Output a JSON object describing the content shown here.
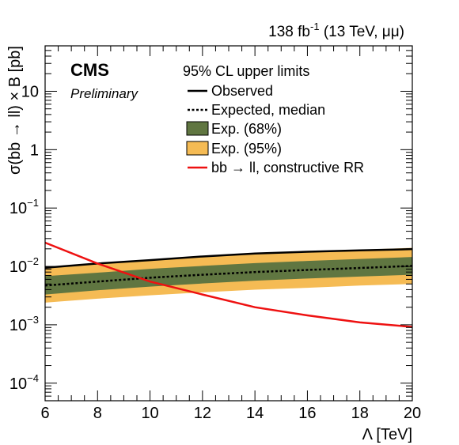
{
  "lumi_label": {
    "lumi": "138 fb",
    "exponent": "-1",
    "conditions": " (13 TeV, μμ)"
  },
  "experiment": "CMS",
  "status": "Preliminary",
  "legend": {
    "header": "95% CL upper limits",
    "observed": "Observed",
    "expected": "Expected, median",
    "band68": "Exp. (68%)",
    "band95": "Exp. (95%)",
    "theory": "bb → ll, constructive RR"
  },
  "colors": {
    "band68": "#607641",
    "band95": "#F5BB54",
    "observed": "#000000",
    "expected": "#000000",
    "theory": "#EE1111"
  },
  "chart_data": {
    "type": "line",
    "x_label": "Λ [TeV]",
    "y_label": "σ(bb → ll) × B [pb]",
    "x_range": [
      6,
      20
    ],
    "y_range": [
      5e-05,
      60
    ],
    "y_scale": "log",
    "x_ticks": [
      6,
      8,
      10,
      12,
      14,
      16,
      18,
      20
    ],
    "y_ticks": [
      {
        "value": 0.0001,
        "base": "10",
        "exp": "−4"
      },
      {
        "value": 0.001,
        "base": "10",
        "exp": "−3"
      },
      {
        "value": 0.01,
        "base": "10",
        "exp": "−2"
      },
      {
        "value": 0.1,
        "base": "10",
        "exp": "−1"
      },
      {
        "value": 1,
        "base": "1",
        "exp": ""
      },
      {
        "value": 10,
        "base": "10",
        "exp": ""
      }
    ],
    "x": [
      6,
      8,
      10,
      12,
      14,
      16,
      18,
      20
    ],
    "series": [
      {
        "name": "Observed",
        "values": [
          0.0095,
          0.0112,
          0.0128,
          0.0148,
          0.0166,
          0.0178,
          0.0188,
          0.0198
        ]
      },
      {
        "name": "Expected, median",
        "values": [
          0.0047,
          0.0055,
          0.0064,
          0.0072,
          0.008,
          0.0087,
          0.0094,
          0.0102
        ]
      },
      {
        "name": "Exp. (68%) low",
        "values": [
          0.0033,
          0.0039,
          0.0045,
          0.0051,
          0.0057,
          0.0062,
          0.0067,
          0.0072
        ]
      },
      {
        "name": "Exp. (68%) high",
        "values": [
          0.0068,
          0.0078,
          0.0091,
          0.0102,
          0.0114,
          0.0124,
          0.0134,
          0.0145
        ]
      },
      {
        "name": "Exp. (95%) low",
        "values": [
          0.0024,
          0.0028,
          0.0032,
          0.0036,
          0.004,
          0.0043,
          0.0047,
          0.005
        ]
      },
      {
        "name": "Exp. (95%) high",
        "values": [
          0.0098,
          0.0113,
          0.013,
          0.0148,
          0.0164,
          0.0178,
          0.0193,
          0.0208
        ]
      },
      {
        "name": "bb → ll, constructive RR",
        "values": [
          0.0255,
          0.0112,
          0.0055,
          0.0033,
          0.002,
          0.00145,
          0.0011,
          0.00092
        ]
      }
    ],
    "grid": false,
    "legend_position": "top-right"
  }
}
